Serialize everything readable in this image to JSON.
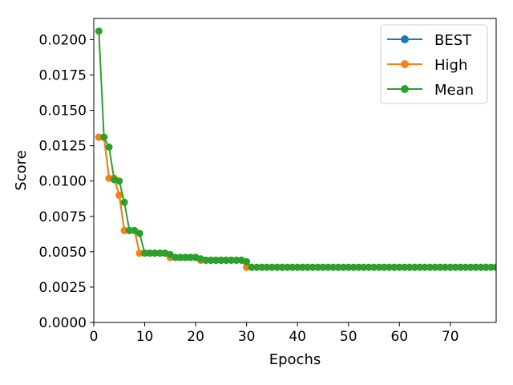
{
  "chart_data": {
    "type": "line",
    "title": "",
    "xlabel": "Epochs",
    "ylabel": "Score",
    "xlim": [
      0,
      79
    ],
    "ylim": [
      0,
      0.0215
    ],
    "xticks": [
      "0",
      "10",
      "20",
      "30",
      "40",
      "50",
      "60",
      "70"
    ],
    "yticks": [
      "0.0000",
      "0.0025",
      "0.0050",
      "0.0075",
      "0.0100",
      "0.0125",
      "0.0150",
      "0.0175",
      "0.0200"
    ],
    "legend_position": "top-right",
    "grid": false,
    "x": [
      1,
      2,
      3,
      4,
      5,
      6,
      7,
      8,
      9,
      10,
      11,
      12,
      13,
      14,
      15,
      16,
      17,
      18,
      19,
      20,
      21,
      22,
      23,
      24,
      25,
      26,
      27,
      28,
      29,
      30,
      31,
      32,
      33,
      34,
      35,
      36,
      37,
      38,
      39,
      40,
      41,
      42,
      43,
      44,
      45,
      46,
      47,
      48,
      49,
      50,
      51,
      52,
      53,
      54,
      55,
      56,
      57,
      58,
      59,
      60,
      61,
      62,
      63,
      64,
      65,
      66,
      67,
      68,
      69,
      70,
      71,
      72,
      73,
      74,
      75,
      76,
      77,
      78,
      79
    ],
    "series": [
      {
        "name": "BEST",
        "color": "#1f77b4",
        "values": [
          0.0131,
          0.0131,
          0.0102,
          0.0102,
          0.009,
          0.0065,
          0.0065,
          0.0065,
          0.0049,
          0.0049,
          0.0049,
          0.0049,
          0.0049,
          0.0049,
          0.0046,
          0.0046,
          0.0046,
          0.0046,
          0.0046,
          0.0046,
          0.0044,
          0.0044,
          0.0044,
          0.0044,
          0.0044,
          0.0044,
          0.0044,
          0.0044,
          0.0044,
          0.0039,
          0.0039,
          0.0039,
          0.0039,
          0.0039,
          0.0039,
          0.0039,
          0.0039,
          0.0039,
          0.0039,
          0.0039,
          0.0039,
          0.0039,
          0.0039,
          0.0039,
          0.0039,
          0.0039,
          0.0039,
          0.0039,
          0.0039,
          0.0039,
          0.0039,
          0.0039,
          0.0039,
          0.0039,
          0.0039,
          0.0039,
          0.0039,
          0.0039,
          0.0039,
          0.0039,
          0.0039,
          0.0039,
          0.0039,
          0.0039,
          0.0039,
          0.0039,
          0.0039,
          0.0039,
          0.0039,
          0.0039,
          0.0039,
          0.0039,
          0.0039,
          0.0039,
          0.0039,
          0.0039,
          0.0039,
          0.0039,
          0.0039
        ]
      },
      {
        "name": "High",
        "color": "#ff7f0e",
        "values": [
          0.0131,
          0.0131,
          0.0102,
          0.0102,
          0.009,
          0.0065,
          0.0065,
          0.0065,
          0.0049,
          0.0049,
          0.0049,
          0.0049,
          0.0049,
          0.0049,
          0.0046,
          0.0046,
          0.0046,
          0.0046,
          0.0046,
          0.0046,
          0.0044,
          0.0044,
          0.0044,
          0.0044,
          0.0044,
          0.0044,
          0.0044,
          0.0044,
          0.0044,
          0.0039,
          0.0039,
          0.0039,
          0.0039,
          0.0039,
          0.0039,
          0.0039,
          0.0039,
          0.0039,
          0.0039,
          0.0039,
          0.0039,
          0.0039,
          0.0039,
          0.0039,
          0.0039,
          0.0039,
          0.0039,
          0.0039,
          0.0039,
          0.0039,
          0.0039,
          0.0039,
          0.0039,
          0.0039,
          0.0039,
          0.0039,
          0.0039,
          0.0039,
          0.0039,
          0.0039,
          0.0039,
          0.0039,
          0.0039,
          0.0039,
          0.0039,
          0.0039,
          0.0039,
          0.0039,
          0.0039,
          0.0039,
          0.0039,
          0.0039,
          0.0039,
          0.0039,
          0.0039,
          0.0039,
          0.0039,
          0.0039,
          0.0039
        ]
      },
      {
        "name": "Mean",
        "color": "#2ca02c",
        "values": [
          0.0206,
          0.0131,
          0.0124,
          0.0101,
          0.01,
          0.0085,
          0.0065,
          0.0065,
          0.0063,
          0.0049,
          0.0049,
          0.0049,
          0.0049,
          0.0049,
          0.0048,
          0.0046,
          0.0046,
          0.0046,
          0.0046,
          0.0046,
          0.0045,
          0.0044,
          0.0044,
          0.0044,
          0.0044,
          0.0044,
          0.0044,
          0.0044,
          0.0044,
          0.0043,
          0.0039,
          0.0039,
          0.0039,
          0.0039,
          0.0039,
          0.0039,
          0.0039,
          0.0039,
          0.0039,
          0.0039,
          0.0039,
          0.0039,
          0.0039,
          0.0039,
          0.0039,
          0.0039,
          0.0039,
          0.0039,
          0.0039,
          0.0039,
          0.0039,
          0.0039,
          0.0039,
          0.0039,
          0.0039,
          0.0039,
          0.0039,
          0.0039,
          0.0039,
          0.0039,
          0.0039,
          0.0039,
          0.0039,
          0.0039,
          0.0039,
          0.0039,
          0.0039,
          0.0039,
          0.0039,
          0.0039,
          0.0039,
          0.0039,
          0.0039,
          0.0039,
          0.0039,
          0.0039,
          0.0039,
          0.0039,
          0.0039
        ]
      }
    ]
  }
}
